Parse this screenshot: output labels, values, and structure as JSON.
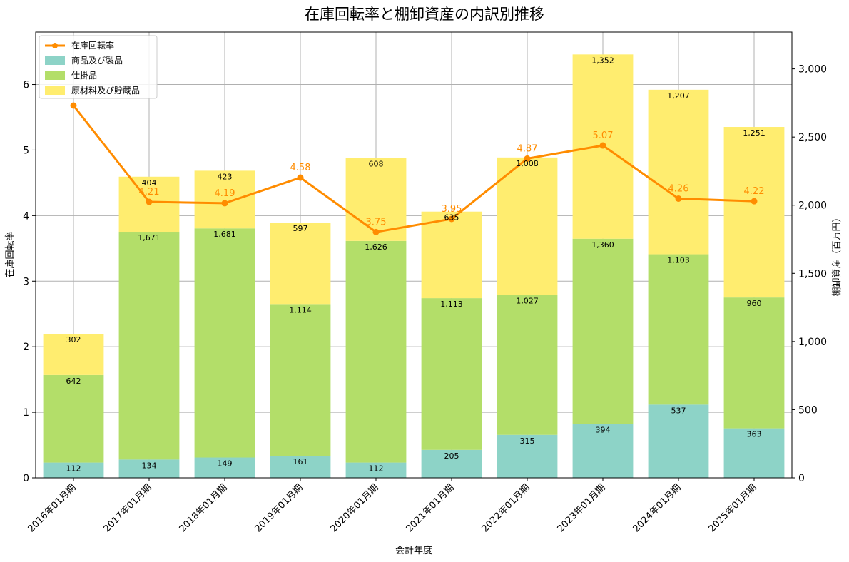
{
  "chart_data": {
    "type": "bar",
    "title": "在庫回転率と棚卸資産の内訳別推移",
    "xlabel": "会計年度",
    "ylabel_left": "在庫回転率",
    "ylabel_right": "棚卸資産（百万円）",
    "categories": [
      "2016年01月期",
      "2017年01月期",
      "2018年01月期",
      "2019年01月期",
      "2020年01月期",
      "2021年01月期",
      "2022年01月期",
      "2023年01月期",
      "2024年01月期",
      "2025年01月期"
    ],
    "series": [
      {
        "name": "商品及び製品",
        "kind": "stacked-bar",
        "axis": "right",
        "color": "#8dd3c7",
        "values": [
          112,
          134,
          149,
          161,
          112,
          205,
          315,
          394,
          537,
          363
        ]
      },
      {
        "name": "仕掛品",
        "kind": "stacked-bar",
        "axis": "right",
        "color": "#b3de69",
        "values": [
          642,
          1671,
          1681,
          1114,
          1626,
          1113,
          1027,
          1360,
          1103,
          960
        ]
      },
      {
        "name": "原材料及び貯蔵品",
        "kind": "stacked-bar",
        "axis": "right",
        "color": "#ffed6f",
        "values": [
          302,
          404,
          423,
          597,
          608,
          635,
          1008,
          1352,
          1207,
          1251
        ]
      },
      {
        "name": "在庫回転率",
        "kind": "line",
        "axis": "left",
        "color": "#ff8c00",
        "values": [
          5.68,
          4.21,
          4.19,
          4.58,
          3.75,
          3.95,
          4.87,
          5.07,
          4.26,
          4.22
        ]
      }
    ],
    "bar_labels": [
      [
        "112",
        "134",
        "149",
        "161",
        "112",
        "205",
        "315",
        "394",
        "537",
        "363"
      ],
      [
        "642",
        "1,671",
        "1,681",
        "1,114",
        "1,626",
        "1,113",
        "1,027",
        "1,360",
        "1,103",
        "960"
      ],
      [
        "302",
        "404",
        "423",
        "597",
        "608",
        "635",
        "1,008",
        "1,352",
        "1,207",
        "1,251"
      ]
    ],
    "line_labels": [
      "",
      "4.21",
      "4.19",
      "4.58",
      "3.75",
      "3.95",
      "4.87",
      "5.07",
      "4.26",
      "4.22"
    ],
    "ylim_left": [
      0,
      6.8
    ],
    "ylim_right": [
      0,
      3270
    ],
    "yticks_left": [
      "0",
      "1",
      "2",
      "3",
      "4",
      "5",
      "6"
    ],
    "yticks_right": [
      "0",
      "500",
      "1,000",
      "1,500",
      "2,000",
      "2,500",
      "3,000"
    ],
    "grid": true,
    "legend_position": "upper-left"
  }
}
